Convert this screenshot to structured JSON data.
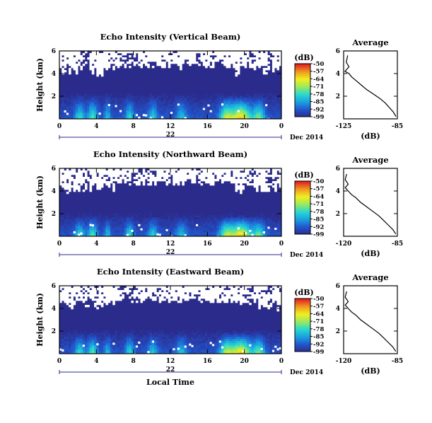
{
  "figure": {
    "xlabel": "Local Time",
    "date_label": "Dec 2014",
    "day_label": "22",
    "colorbar_unit": "(dB)",
    "colorbar_ticks": [
      "-50",
      "-57",
      "-64",
      "-71",
      "-78",
      "-85",
      "-92",
      "-99"
    ],
    "avg_xlabel": "(dB)"
  },
  "chart_data": [
    {
      "type": "heatmap",
      "title": "Echo Intensity (Vertical Beam)",
      "ylabel": "Height (km)",
      "xlabel": "Local Time",
      "x_ticks": [
        "0",
        "4",
        "8",
        "12",
        "16",
        "20",
        "0"
      ],
      "y_ticks": [
        "2",
        "4",
        "6"
      ],
      "x_range_hours": [
        0,
        24
      ],
      "y_range_km": [
        0,
        6
      ],
      "colorbar": {
        "label": "(dB)",
        "min": -99,
        "max": -50
      },
      "color_stops": [
        "#2b2b8c",
        "#2255cc",
        "#1a9fe0",
        "#28d8d0",
        "#9ae860",
        "#f0f020",
        "#f09a20",
        "#e02020"
      ],
      "echo_top_km": 2.3,
      "seed": 11
    },
    {
      "type": "line",
      "title": "Average",
      "xlabel": "(dB)",
      "x_ticks": [
        "-125",
        "-85"
      ],
      "y_ticks": [
        "2",
        "4",
        "6"
      ],
      "x_range": [
        -125,
        -85
      ],
      "y_range": [
        0,
        6
      ],
      "series": [
        {
          "x": [
            -122,
            -123,
            -121,
            -124,
            -121,
            -119,
            -116,
            -112,
            -108,
            -103,
            -98,
            -94,
            -91,
            -88,
            -86
          ],
          "y": [
            5.6,
            5.0,
            4.6,
            4.2,
            4.0,
            3.7,
            3.4,
            3.0,
            2.6,
            2.2,
            1.8,
            1.4,
            1.0,
            0.6,
            0.2
          ]
        }
      ]
    },
    {
      "type": "heatmap",
      "title": "Echo Intensity (Northward Beam)",
      "ylabel": "Height (km)",
      "xlabel": "Local Time",
      "x_ticks": [
        "0",
        "4",
        "8",
        "12",
        "16",
        "20",
        "0"
      ],
      "y_ticks": [
        "2",
        "4",
        "6"
      ],
      "x_range_hours": [
        0,
        24
      ],
      "y_range_km": [
        0,
        6
      ],
      "colorbar": {
        "label": "(dB)",
        "min": -99,
        "max": -50
      },
      "color_stops": [
        "#2b2b8c",
        "#2255cc",
        "#1a9fe0",
        "#28d8d0",
        "#9ae860",
        "#f0f020",
        "#f09a20",
        "#e02020"
      ],
      "echo_top_km": 2.0,
      "seed": 23
    },
    {
      "type": "line",
      "title": "Average",
      "xlabel": "(dB)",
      "x_ticks": [
        "-120",
        "-85"
      ],
      "y_ticks": [
        "2",
        "4",
        "6"
      ],
      "x_range": [
        -120,
        -85
      ],
      "y_range": [
        0,
        6
      ],
      "series": [
        {
          "x": [
            -118,
            -119,
            -117,
            -119,
            -117,
            -115,
            -112,
            -109,
            -105,
            -101,
            -97,
            -94,
            -91,
            -88,
            -86
          ],
          "y": [
            5.5,
            5.0,
            4.6,
            4.3,
            4.0,
            3.7,
            3.4,
            3.0,
            2.6,
            2.2,
            1.8,
            1.4,
            1.0,
            0.6,
            0.2
          ]
        }
      ]
    },
    {
      "type": "heatmap",
      "title": "Echo Intensity (Eastward Beam)",
      "ylabel": "Height (km)",
      "xlabel": "Local Time",
      "x_ticks": [
        "0",
        "4",
        "8",
        "12",
        "16",
        "20",
        "0"
      ],
      "y_ticks": [
        "2",
        "4",
        "6"
      ],
      "x_range_hours": [
        0,
        24
      ],
      "y_range_km": [
        0,
        6
      ],
      "colorbar": {
        "label": "(dB)",
        "min": -99,
        "max": -50
      },
      "color_stops": [
        "#2b2b8c",
        "#2255cc",
        "#1a9fe0",
        "#28d8d0",
        "#9ae860",
        "#f0f020",
        "#f09a20",
        "#e02020"
      ],
      "echo_top_km": 2.1,
      "seed": 37
    },
    {
      "type": "line",
      "title": "Average",
      "xlabel": "(dB)",
      "x_ticks": [
        "-120",
        "-85"
      ],
      "y_ticks": [
        "2",
        "4",
        "6"
      ],
      "x_range": [
        -120,
        -85
      ],
      "y_range": [
        0,
        6
      ],
      "series": [
        {
          "x": [
            -118,
            -119,
            -117,
            -119,
            -117,
            -115,
            -112,
            -109,
            -105,
            -101,
            -97,
            -94,
            -91,
            -88,
            -86
          ],
          "y": [
            5.5,
            5.0,
            4.6,
            4.3,
            4.0,
            3.7,
            3.4,
            3.0,
            2.6,
            2.2,
            1.8,
            1.4,
            1.0,
            0.6,
            0.2
          ]
        }
      ]
    }
  ]
}
